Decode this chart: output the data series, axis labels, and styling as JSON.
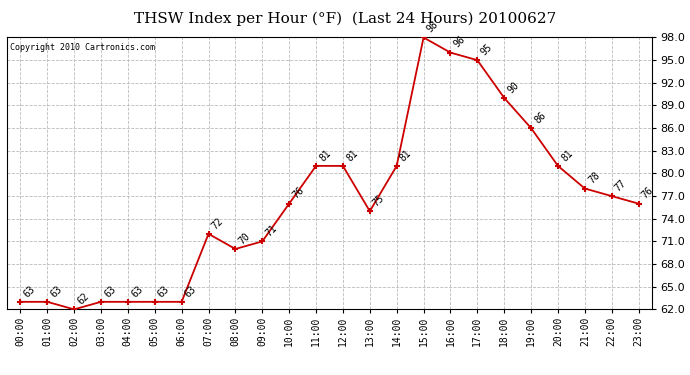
{
  "title": "THSW Index per Hour (°F)  (Last 24 Hours) 20100627",
  "copyright": "Copyright 2010 Cartronics.com",
  "hours": [
    "00:00",
    "01:00",
    "02:00",
    "03:00",
    "04:00",
    "05:00",
    "06:00",
    "07:00",
    "08:00",
    "09:00",
    "10:00",
    "11:00",
    "12:00",
    "13:00",
    "14:00",
    "15:00",
    "16:00",
    "17:00",
    "18:00",
    "19:00",
    "20:00",
    "21:00",
    "22:00",
    "23:00"
  ],
  "values": [
    63,
    63,
    62,
    63,
    63,
    63,
    63,
    72,
    70,
    71,
    76,
    81,
    81,
    75,
    81,
    98,
    96,
    95,
    90,
    86,
    81,
    78,
    77,
    76
  ],
  "ylim": [
    62.0,
    98.0
  ],
  "yticks": [
    62.0,
    65.0,
    68.0,
    71.0,
    74.0,
    77.0,
    80.0,
    83.0,
    86.0,
    89.0,
    92.0,
    95.0,
    98.0
  ],
  "line_color": "#cc0000",
  "marker_color": "#cc0000",
  "bg_color": "#ffffff",
  "grid_color": "#bbbbbb",
  "title_fontsize": 11,
  "label_fontsize": 7,
  "annotation_fontsize": 7
}
